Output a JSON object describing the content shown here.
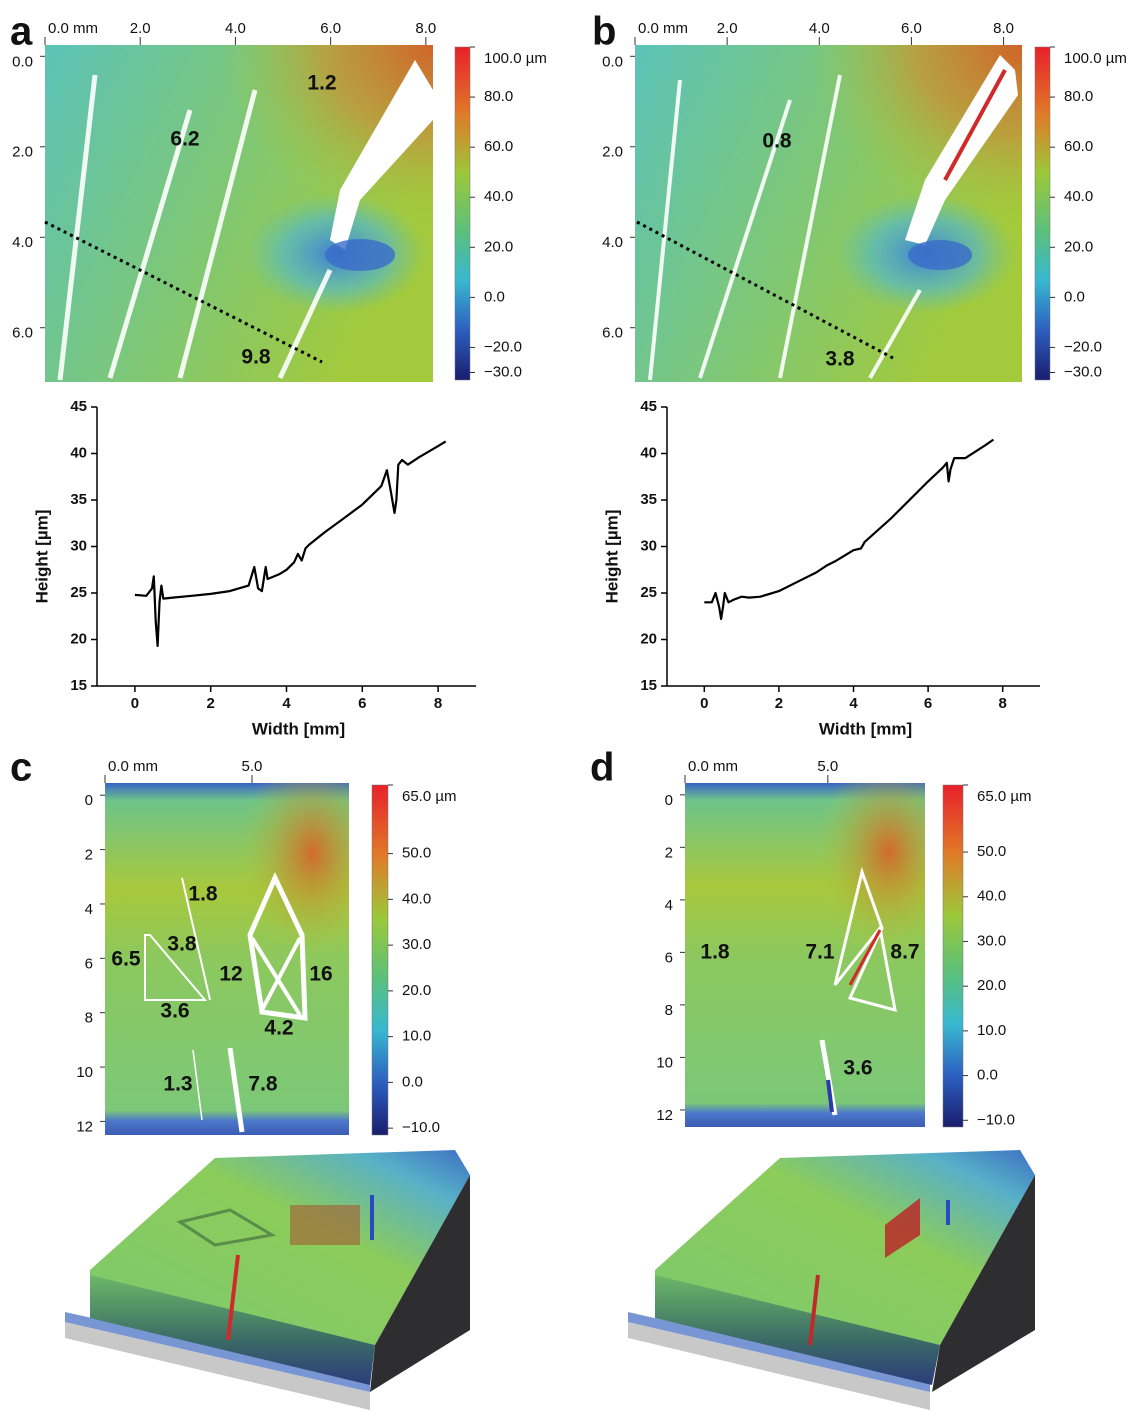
{
  "chart_data": [
    {
      "type": "heatmap",
      "panel": "a",
      "xlim": [
        0,
        8.15
      ],
      "ylim": [
        -0.25,
        7.2
      ],
      "xticks": [
        {
          "value": 0,
          "label": "0.0 mm"
        },
        {
          "value": 2,
          "label": "2.0"
        },
        {
          "value": 4,
          "label": "4.0"
        },
        {
          "value": 6,
          "label": "6.0"
        },
        {
          "value": 8,
          "label": "8.0"
        }
      ],
      "yticks": [
        {
          "value": 0,
          "label": "0.0"
        },
        {
          "value": 2,
          "label": "2.0"
        },
        {
          "value": 4,
          "label": "4.0"
        },
        {
          "value": 6,
          "label": "6.0"
        }
      ],
      "clim": [
        -33,
        100
      ],
      "cticks": [
        {
          "value": 100,
          "label": "100.0 µm"
        },
        {
          "value": 80,
          "label": "80.0"
        },
        {
          "value": 60,
          "label": "60.0"
        },
        {
          "value": 40,
          "label": "40.0"
        },
        {
          "value": 20,
          "label": "20.0"
        },
        {
          "value": 0,
          "label": "0.0"
        },
        {
          "value": -20,
          "label": "−20.0"
        },
        {
          "value": -30,
          "label": "−30.0"
        }
      ],
      "annotations": [
        "1.2",
        "6.2",
        "9.8"
      ]
    },
    {
      "type": "heatmap",
      "panel": "b",
      "xlim": [
        0,
        8.4
      ],
      "ylim": [
        -0.25,
        7.2
      ],
      "xticks": [
        {
          "value": 0,
          "label": "0.0 mm"
        },
        {
          "value": 2,
          "label": "2.0"
        },
        {
          "value": 4,
          "label": "4.0"
        },
        {
          "value": 6,
          "label": "6.0"
        },
        {
          "value": 8,
          "label": "8.0"
        }
      ],
      "yticks": [
        {
          "value": 0,
          "label": "0.0"
        },
        {
          "value": 2,
          "label": "2.0"
        },
        {
          "value": 4,
          "label": "4.0"
        },
        {
          "value": 6,
          "label": "6.0"
        }
      ],
      "clim": [
        -33,
        100
      ],
      "cticks": [
        {
          "value": 100,
          "label": "100.0 µm"
        },
        {
          "value": 80,
          "label": "80.0"
        },
        {
          "value": 60,
          "label": "60.0"
        },
        {
          "value": 40,
          "label": "40.0"
        },
        {
          "value": 20,
          "label": "20.0"
        },
        {
          "value": 0,
          "label": "0.0"
        },
        {
          "value": -20,
          "label": "−20.0"
        },
        {
          "value": -30,
          "label": "−30.0"
        }
      ],
      "annotations": [
        "0.8",
        "3.8"
      ]
    },
    {
      "type": "line",
      "xlabel": "Width [mm]",
      "ylabel": "Height [µm]",
      "xlim": [
        -1,
        9
      ],
      "ylim": [
        15,
        45
      ],
      "xticks": [
        0,
        2,
        4,
        6,
        8
      ],
      "yticks": [
        15,
        20,
        25,
        30,
        35,
        40,
        45
      ],
      "color": "#000000",
      "x": [
        0,
        0.3,
        0.45,
        0.5,
        0.55,
        0.6,
        0.65,
        0.7,
        0.75,
        1,
        1.5,
        2,
        2.5,
        3,
        3.15,
        3.25,
        3.35,
        3.4,
        3.45,
        3.5,
        3.8,
        4,
        4.2,
        4.3,
        4.4,
        4.5,
        4.6,
        5,
        5.5,
        6,
        6.5,
        6.65,
        6.75,
        6.85,
        6.9,
        6.95,
        7.05,
        7.2,
        7.5,
        8,
        8.2
      ],
      "values": [
        24.8,
        24.7,
        25.5,
        26.8,
        22,
        19.3,
        24,
        25.8,
        24.4,
        24.5,
        24.7,
        24.9,
        25.2,
        25.8,
        27.8,
        25.5,
        25.2,
        26.5,
        27.8,
        26.5,
        27,
        27.5,
        28.3,
        29.2,
        28.5,
        29.8,
        30.2,
        31.5,
        33,
        34.5,
        36.5,
        38.2,
        36,
        33.6,
        35,
        38.8,
        39.3,
        38.8,
        39.6,
        40.8,
        41.3
      ]
    },
    {
      "type": "line",
      "xlabel": "Width [mm]",
      "ylabel": "Height [µm]",
      "xlim": [
        -1,
        9
      ],
      "ylim": [
        15,
        45
      ],
      "xticks": [
        0,
        2,
        4,
        6,
        8
      ],
      "yticks": [
        15,
        20,
        25,
        30,
        35,
        40,
        45
      ],
      "color": "#000000",
      "x": [
        0,
        0.2,
        0.3,
        0.4,
        0.45,
        0.5,
        0.55,
        0.65,
        0.8,
        1,
        1.2,
        1.5,
        2,
        2.5,
        3,
        3.3,
        3.5,
        4,
        4.2,
        4.3,
        4.5,
        5,
        5.5,
        6,
        6.4,
        6.5,
        6.55,
        6.6,
        6.7,
        7,
        7.5,
        7.75
      ],
      "values": [
        24,
        24,
        25,
        23.5,
        22.2,
        23.5,
        25,
        24,
        24.3,
        24.6,
        24.5,
        24.6,
        25.2,
        26.2,
        27.2,
        28,
        28.4,
        29.6,
        29.8,
        30.5,
        31.2,
        33,
        35,
        37,
        38.5,
        39,
        37,
        38.3,
        39.5,
        39.5,
        40.8,
        41.5
      ]
    },
    {
      "type": "heatmap",
      "panel": "c",
      "xlim": [
        0,
        8.3
      ],
      "ylim": [
        -0.45,
        12.5
      ],
      "xticks": [
        {
          "value": 0,
          "label": "0.0 mm"
        },
        {
          "value": 5,
          "label": "5.0"
        }
      ],
      "yticks": [
        0,
        2,
        4,
        6,
        8,
        10,
        12
      ],
      "clim": [
        -11.5,
        65
      ],
      "cticks": [
        {
          "value": 65,
          "label": "65.0 µm"
        },
        {
          "value": 50,
          "label": "50.0"
        },
        {
          "value": 40,
          "label": "40.0"
        },
        {
          "value": 30,
          "label": "30.0"
        },
        {
          "value": 20,
          "label": "20.0"
        },
        {
          "value": 10,
          "label": "10.0"
        },
        {
          "value": 0,
          "label": "0.0"
        },
        {
          "value": -10,
          "label": "−10.0"
        }
      ],
      "annotations": [
        "1.8",
        "3.8",
        "6.5",
        "12",
        "16",
        "3.6",
        "4.2",
        "1.3",
        "7.8"
      ]
    },
    {
      "type": "heatmap",
      "panel": "d",
      "xlim": [
        0,
        8.4
      ],
      "ylim": [
        -0.45,
        12.65
      ],
      "xticks": [
        {
          "value": 0,
          "label": "0.0 mm"
        },
        {
          "value": 5,
          "label": "5.0"
        }
      ],
      "yticks": [
        0,
        2,
        4,
        6,
        8,
        10,
        12
      ],
      "clim": [
        -11.5,
        65
      ],
      "cticks": [
        {
          "value": 65,
          "label": "65.0 µm"
        },
        {
          "value": 50,
          "label": "50.0"
        },
        {
          "value": 40,
          "label": "40.0"
        },
        {
          "value": 30,
          "label": "30.0"
        },
        {
          "value": 20,
          "label": "20.0"
        },
        {
          "value": 10,
          "label": "10.0"
        },
        {
          "value": 0,
          "label": "0.0"
        },
        {
          "value": -10,
          "label": "−10.0"
        }
      ],
      "annotations": [
        "1.8",
        "7.1",
        "8.7",
        "3.6"
      ]
    }
  ]
}
